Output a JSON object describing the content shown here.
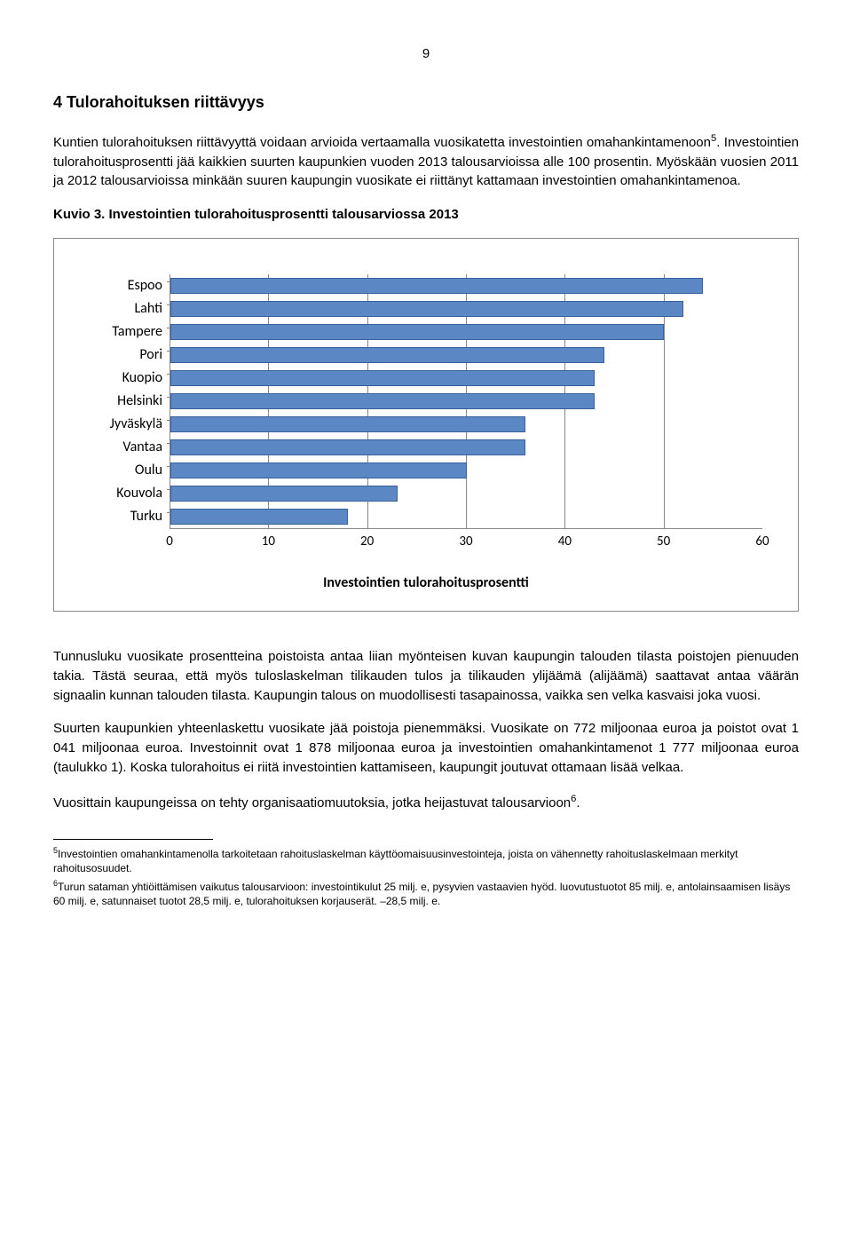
{
  "page_number": "9",
  "heading": "4 Tulorahoituksen riittävyys",
  "para1": "Kuntien tulorahoituksen riittävyyttä voidaan arvioida vertaamalla vuosikatetta investointien omahankintamenoon",
  "para1_sup": "5",
  "para1_b": ". Investointien tulorahoitusprosentti jää kaikkien suurten kaupunkien vuoden 2013 talousarvioissa alle 100 prosentin. Myöskään vuosien 2011 ja 2012 talousarvioissa minkään suuren kaupungin vuosikate ei riittänyt kattamaan investointien omahankintamenoa.",
  "chart_title": "Kuvio 3. Investointien tulorahoitusprosentti talousarviossa 2013",
  "chart": {
    "categories": [
      "Espoo",
      "Lahti",
      "Tampere",
      "Pori",
      "Kuopio",
      "Helsinki",
      "Jyväskylä",
      "Vantaa",
      "Oulu",
      "Kouvola",
      "Turku"
    ],
    "values": [
      54,
      52,
      50,
      44,
      43,
      43,
      36,
      36,
      30,
      23,
      18
    ],
    "xmax": 60,
    "xticks": [
      0,
      10,
      20,
      30,
      40,
      50,
      60
    ],
    "bar_fill": "#5b88c5",
    "bar_stroke": "#3860a0",
    "grid_color": "#888888",
    "xaxis_label": "Investointien tulorahoitusprosentti"
  },
  "para2": "Tunnusluku vuosikate prosentteina poistoista antaa liian myönteisen kuvan kaupungin talouden tilasta poistojen pienuuden takia. Tästä seuraa, että myös tuloslaskelman tilikauden tulos ja tilikauden ylijäämä (alijäämä) saattavat antaa väärän signaalin kunnan talouden tilasta. Kaupungin talous on muodollisesti tasapainossa, vaikka sen velka kasvaisi joka vuosi.",
  "para3": "Suurten kaupunkien yhteenlaskettu vuosikate jää poistoja pienemmäksi. Vuosikate on 772 miljoonaa euroa ja poistot ovat 1 041 miljoonaa euroa. Investoinnit ovat 1 878 miljoonaa euroa ja investointien omahankintamenot 1 777 miljoonaa euroa (taulukko 1). Koska tulorahoitus ei riitä investointien kattamiseen, kaupungit joutuvat ottamaan lisää velkaa.",
  "para4": "Vuosittain kaupungeissa on tehty organisaatiomuutoksia, jotka heijastuvat talousarvioon",
  "para4_sup": "6",
  "para4_b": ".",
  "footnote5_sup": "5",
  "footnote5": "Investointien omahankintamenolla tarkoitetaan rahoituslaskelman käyttöomaisuusinvestointeja, joista on vähennetty rahoituslaskelmaan merkityt rahoitusosuudet.",
  "footnote6_sup": "6",
  "footnote6": "Turun sataman yhtiöittämisen vaikutus talousarvioon: investointikulut 25 milj. e, pysyvien vastaavien hyöd. luovutustuotot 85 milj. e, antolainsaamisen lisäys 60 milj. e, satunnaiset tuotot 28,5 milj. e, tulorahoituksen korjauserät. –28,5 milj. e."
}
